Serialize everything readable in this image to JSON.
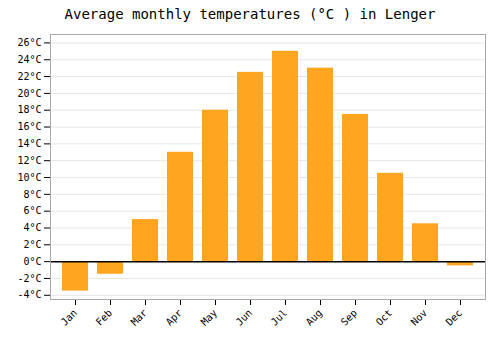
{
  "chart_data": {
    "type": "bar",
    "title": "Average monthly temperatures (°C ) in Lenger",
    "categories": [
      "Jan",
      "Feb",
      "Mar",
      "Apr",
      "May",
      "Jun",
      "Jul",
      "Aug",
      "Sep",
      "Oct",
      "Nov",
      "Dec"
    ],
    "values": [
      -3.5,
      -1.5,
      5.0,
      13.0,
      18.0,
      22.5,
      25.0,
      23.0,
      17.5,
      10.5,
      4.5,
      -0.5
    ],
    "color": "#FFA520",
    "ylim": [
      -4.5,
      27
    ],
    "yticks": [
      {
        "value": -4,
        "label": "-4°C"
      },
      {
        "value": -2,
        "label": "-2°C"
      },
      {
        "value": 0,
        "label": "0°C"
      },
      {
        "value": 2,
        "label": "2°C"
      },
      {
        "value": 4,
        "label": "4°C"
      },
      {
        "value": 6,
        "label": "6°C"
      },
      {
        "value": 8,
        "label": "8°C"
      },
      {
        "value": 10,
        "label": "10°C"
      },
      {
        "value": 12,
        "label": "12°C"
      },
      {
        "value": 14,
        "label": "14°C"
      },
      {
        "value": 16,
        "label": "16°C"
      },
      {
        "value": 18,
        "label": "18°C"
      },
      {
        "value": 20,
        "label": "20°C"
      },
      {
        "value": 22,
        "label": "22°C"
      },
      {
        "value": 24,
        "label": "24°C"
      },
      {
        "value": 26,
        "label": "26°C"
      }
    ],
    "grid": true
  }
}
